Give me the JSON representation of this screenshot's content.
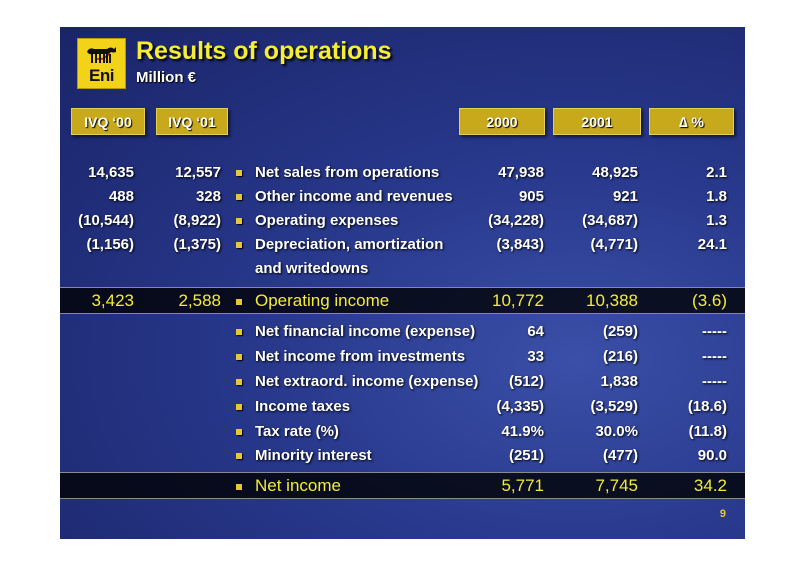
{
  "header": {
    "logo_text": "Eni",
    "title": "Results of operations",
    "subtitle": "Million €"
  },
  "columns": {
    "q00": "IVQ ‘00",
    "q01": "IVQ ‘01",
    "y2000": "2000",
    "y2001": "2001",
    "delta": "∆ %"
  },
  "rows_top": [
    {
      "q00": "14,635",
      "q01": "12,557",
      "label": "Net sales from operations",
      "y2000": "47,938",
      "y2001": "48,925",
      "pct": "2.1"
    },
    {
      "q00": "488",
      "q01": "328",
      "label": "Other income and revenues",
      "y2000": "905",
      "y2001": "921",
      "pct": "1.8"
    },
    {
      "q00": "(10,544)",
      "q01": "(8,922)",
      "label": "Operating expenses",
      "y2000": "(34,228)",
      "y2001": "(34,687)",
      "pct": "1.3"
    },
    {
      "q00": "(1,156)",
      "q01": "(1,375)",
      "label": "Depreciation, amortization",
      "label2": "and writedowns",
      "y2000": "(3,843)",
      "y2001": "(4,771)",
      "pct": "24.1"
    }
  ],
  "operating_income": {
    "q00": "3,423",
    "q01": "2,588",
    "label": "Operating income",
    "y2000": "10,772",
    "y2001": "10,388",
    "pct": "(3.6)"
  },
  "rows_bottom": [
    {
      "label": "Net financial income (expense)",
      "y2000": "64",
      "y2001": "(259)",
      "pct": "-----"
    },
    {
      "label": "Net income from investments",
      "y2000": "33",
      "y2001": "(216)",
      "pct": "-----"
    },
    {
      "label": "Net extraord. income (expense)",
      "y2000": "(512)",
      "y2001": "1,838",
      "pct": "-----"
    },
    {
      "label": "Income taxes",
      "y2000": "(4,335)",
      "y2001": "(3,529)",
      "pct": "(18.6)"
    },
    {
      "label": "Tax rate (%)",
      "y2000": "41.9%",
      "y2001": "30.0%",
      "pct": "(11.8)"
    },
    {
      "label": "Minority interest",
      "y2000": "(251)",
      "y2001": "(477)",
      "pct": "90.0"
    }
  ],
  "net_income": {
    "label": "Net income",
    "y2000": "5,771",
    "y2001": "7,745",
    "pct": "34.2"
  },
  "page_number": "9",
  "colors": {
    "title": "#f5ee34",
    "header_box": "#c9a91c",
    "highlight_text": "#f3ec3b",
    "background": "#27378a"
  }
}
